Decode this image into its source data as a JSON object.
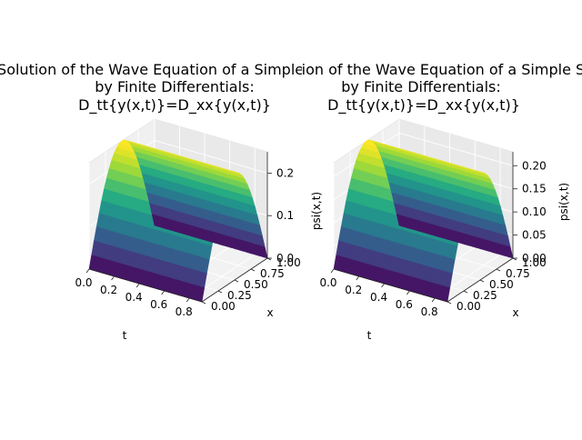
{
  "chart_data": [
    {
      "type": "surface3d",
      "title_lines": [
        "Solution of the Wave Equation of a Simple String",
        "by Finite Differentials:",
        "D_tt{y(x,t)}=D_xx{y(x,t)}"
      ],
      "xlabel": "t",
      "ylabel": "x",
      "zlabel": "psi(x,t)",
      "xlim": [
        0,
        0.9
      ],
      "ylim": [
        0,
        1.0
      ],
      "zlim": [
        0,
        0.25
      ],
      "xticks": [
        "0.0",
        "0.2",
        "0.4",
        "0.6",
        "0.8"
      ],
      "yticks": [
        "0.00",
        "0.25",
        "0.50",
        "0.75",
        "1.00"
      ],
      "zticks": [
        "0.0",
        "0.1",
        "0.2"
      ],
      "zticks_values": [
        0,
        0.1,
        0.2
      ],
      "z_max": 0.25,
      "colormap": "viridis",
      "grid": true
    },
    {
      "type": "surface3d",
      "title_lines": [
        "Real Solution of the Wave Equation of a Simple String",
        "by  Finite Differentials:",
        "D_tt{y(x,t)}=D_xx{y(x,t)}"
      ],
      "xlabel": "t",
      "ylabel": "x",
      "zlabel": "psi(x,t)",
      "xlim": [
        0,
        0.9
      ],
      "ylim": [
        0,
        1.0
      ],
      "zlim": [
        0,
        0.23
      ],
      "xticks": [
        "0.0",
        "0.2",
        "0.4",
        "0.6",
        "0.8"
      ],
      "yticks": [
        "0.00",
        "0.25",
        "0.50",
        "0.75",
        "1.00"
      ],
      "zticks": [
        "0.00",
        "0.05",
        "0.10",
        "0.15",
        "0.20"
      ],
      "zticks_values": [
        0,
        0.05,
        0.1,
        0.15,
        0.2
      ],
      "z_max": 0.23,
      "colormap": "viridis",
      "grid": true
    }
  ]
}
